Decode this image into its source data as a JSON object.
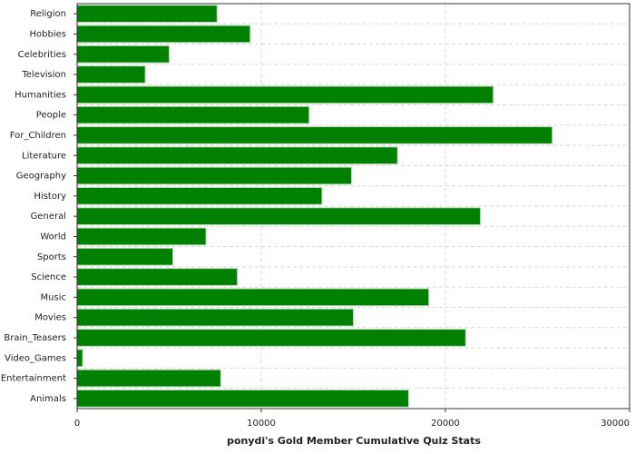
{
  "chart_data": {
    "type": "barh",
    "xlabel": "ponydi's Gold Member Cumulative Quiz Stats",
    "categories": [
      "Religion",
      "Hobbies",
      "Celebrities",
      "Television",
      "Humanities",
      "People",
      "For_Children",
      "Literature",
      "Geography",
      "History",
      "General",
      "World",
      "Sports",
      "Science",
      "Music",
      "Movies",
      "Brain_Teasers",
      "Video_Games",
      "Entertainment",
      "Animals"
    ],
    "values": [
      7600,
      9400,
      5000,
      3700,
      22600,
      12600,
      25800,
      17400,
      14900,
      13300,
      21900,
      7000,
      5200,
      8700,
      19100,
      15000,
      21100,
      300,
      7800,
      18000
    ],
    "color": "#008000",
    "xlim": [
      0,
      30000
    ],
    "xticks": [
      0,
      10000,
      20000,
      30000
    ],
    "grid": true
  }
}
